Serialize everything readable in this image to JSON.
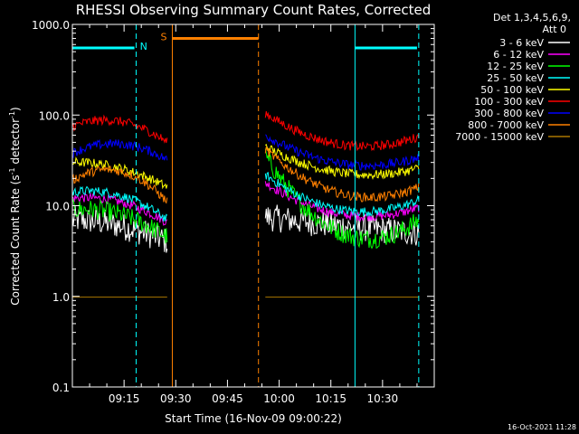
{
  "chart_data": {
    "type": "line",
    "title": "RHESSI Observing Summary Count Rates, Corrected",
    "xlabel": "Start Time (16-Nov-09 09:00:22)",
    "ylabel": "Corrected Count Rate (s⁻¹ detector⁻¹)",
    "ylabel_main": "Corrected Count Rate (s",
    "ylabel_sup1": "-1",
    "ylabel_mid": " detector",
    "ylabel_sup2": "-1",
    "ylabel_end": ")",
    "yscale": "log",
    "ylim": [
      0.1,
      1000
    ],
    "xlim_minutes": [
      0,
      105
    ],
    "yticks": [
      {
        "value": 1000,
        "label": "1000.0"
      },
      {
        "value": 100,
        "label": "100.0"
      },
      {
        "value": 10,
        "label": "10.0"
      },
      {
        "value": 1,
        "label": "1.0"
      },
      {
        "value": 0.1,
        "label": "0.1"
      }
    ],
    "xticks": [
      {
        "value": 15,
        "label": "09:15"
      },
      {
        "value": 30,
        "label": "09:30"
      },
      {
        "value": 45,
        "label": "09:45"
      },
      {
        "value": 60,
        "label": "10:00"
      },
      {
        "value": 75,
        "label": "10:15"
      },
      {
        "value": 90,
        "label": "10:30"
      }
    ],
    "legend_header": [
      "Det 1,3,4,5,6,9,",
      "Att 0"
    ],
    "series": [
      {
        "name": "3 - 6 keV",
        "color": "#ffffff",
        "pre": [
          7.0,
          6.0,
          4.0
        ],
        "post": [
          7.5,
          6.0,
          5.0
        ]
      },
      {
        "name": "6 - 12 keV",
        "color": "#ff00ff",
        "pre": [
          12.0,
          11.0,
          6.5
        ],
        "post": [
          18.0,
          8.0,
          9.5
        ]
      },
      {
        "name": "12 - 25 keV",
        "color": "#00ff00",
        "pre": [
          9.0,
          8.0,
          4.5
        ],
        "post": [
          35.0,
          5.0,
          7.0
        ]
      },
      {
        "name": "25 - 50 keV",
        "color": "#00ffff",
        "pre": [
          14.0,
          13.0,
          7.0
        ],
        "post": [
          22.0,
          9.0,
          11.5
        ]
      },
      {
        "name": "50 - 100 keV",
        "color": "#ffff00",
        "pre": [
          30.0,
          26.0,
          16.0
        ],
        "post": [
          45.0,
          23.0,
          26.0
        ]
      },
      {
        "name": "100 - 300 keV",
        "color": "#ff0000",
        "pre": [
          75.0,
          85.0,
          50.0
        ],
        "post": [
          105.0,
          47.0,
          58.0
        ]
      },
      {
        "name": "300 - 800 keV",
        "color": "#0000ff",
        "pre": [
          38.0,
          48.0,
          32.0
        ],
        "post": [
          60.0,
          29.0,
          34.0
        ]
      },
      {
        "name": "800 - 7000 keV",
        "color": "#ff8000",
        "pre": [
          19.0,
          24.0,
          11.0
        ],
        "post": [
          42.0,
          13.5,
          16.0
        ]
      },
      {
        "name": "7000 - 15000 keV",
        "color": "#aa7700",
        "pre": [
          0.98,
          0.98,
          0.98
        ],
        "post": [
          0.98,
          0.98,
          0.98
        ]
      }
    ],
    "observing_flags": [
      {
        "label": "N",
        "color": "#00ffff",
        "start": 0,
        "end": 18,
        "level": 550
      },
      {
        "label": "N",
        "color": "#00ffff",
        "start": 82,
        "end": 100,
        "level": 550
      },
      {
        "label": "S",
        "color": "#ff8000",
        "start": 29,
        "end": 54,
        "level": 700
      }
    ],
    "vertical_markers": [
      {
        "minute": 0,
        "color": "#00ffff",
        "style": "solid"
      },
      {
        "minute": 18.5,
        "color": "#00ffff",
        "style": "dashed"
      },
      {
        "minute": 29,
        "color": "#ff8000",
        "style": "solid"
      },
      {
        "minute": 54,
        "color": "#ff8000",
        "style": "dashed"
      },
      {
        "minute": 82,
        "color": "#00ffff",
        "style": "solid"
      },
      {
        "minute": 100.5,
        "color": "#00ffff",
        "style": "dashed"
      }
    ],
    "segments": {
      "pre": [
        0,
        27.5
      ],
      "gap": [
        27.5,
        56
      ],
      "post": [
        56,
        100.5
      ]
    },
    "footer_date": "16-Oct-2021 11:28"
  }
}
